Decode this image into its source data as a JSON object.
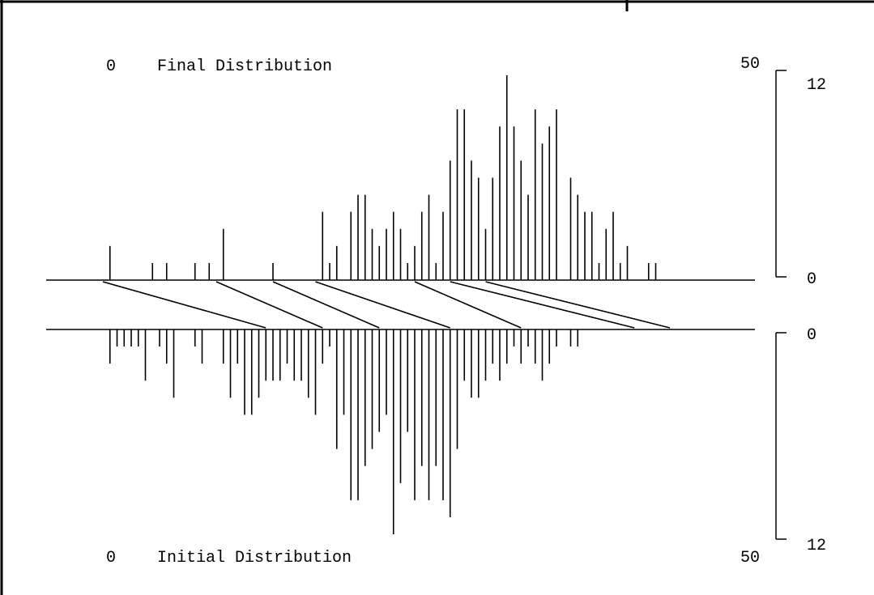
{
  "chart_data": {
    "type": "bar",
    "domain_range": [
      0,
      50
    ],
    "count_range": [
      0,
      12
    ],
    "final": {
      "title": "Final Distribution",
      "x_start_label": "0",
      "x_end_label": "50",
      "scale_max_label": "12",
      "scale_min_label": "0",
      "x": [
        4.5,
        7.5,
        8.5,
        10.5,
        11.5,
        12.5,
        16,
        19.5,
        20,
        20.5,
        21.5,
        22,
        22.5,
        23,
        23.5,
        24,
        24.5,
        25,
        25.5,
        26,
        26.5,
        27,
        27.5,
        28,
        28.5,
        29,
        29.5,
        30,
        30.5,
        31,
        31.5,
        32,
        32.5,
        33,
        33.5,
        34,
        34.5,
        35,
        35.5,
        36,
        37,
        37.5,
        38,
        38.5,
        39,
        39.5,
        40,
        40.5,
        41,
        42.5,
        43
      ],
      "values": [
        2,
        1,
        1,
        1,
        1,
        3,
        1,
        4,
        1,
        2,
        4,
        5,
        5,
        3,
        2,
        3,
        4,
        3,
        1,
        2,
        4,
        5,
        1,
        4,
        7,
        10,
        10,
        7,
        6,
        3,
        6,
        9,
        12,
        9,
        7,
        5,
        10,
        8,
        9,
        10,
        6,
        5,
        4,
        4,
        1,
        3,
        4,
        1,
        2,
        1,
        1
      ]
    },
    "initial": {
      "title": "Initial Distribution",
      "x_start_label": "0",
      "x_end_label": "50",
      "scale_max_label": "12",
      "scale_min_label": "0",
      "x": [
        4.5,
        5,
        5.5,
        6,
        6.5,
        7,
        8,
        8.5,
        9,
        10.5,
        11,
        12.5,
        13,
        13.5,
        14,
        14.5,
        15,
        15.5,
        16,
        16.5,
        17,
        17.5,
        18,
        18.5,
        19,
        19.5,
        20,
        20.5,
        21,
        21.5,
        22,
        22.5,
        23,
        23.5,
        24,
        24.5,
        25,
        25.5,
        26,
        26.5,
        27,
        27.5,
        28,
        28.5,
        29,
        29.5,
        30,
        30.5,
        31,
        31.5,
        32,
        32.5,
        33,
        33.5,
        34,
        34.5,
        35,
        35.5,
        36,
        37,
        37.5
      ],
      "values": [
        2,
        1,
        1,
        1,
        1,
        3,
        1,
        2,
        4,
        1,
        2,
        2,
        4,
        2,
        5,
        5,
        4,
        3,
        3,
        3,
        2,
        3,
        3,
        4,
        5,
        2,
        1,
        7,
        5,
        10,
        10,
        8,
        7,
        6,
        5,
        12,
        9,
        6,
        10,
        8,
        10,
        8,
        10,
        11,
        7,
        3,
        4,
        4,
        3,
        2,
        3,
        2,
        1,
        2,
        1,
        2,
        3,
        2,
        1,
        1,
        1
      ]
    },
    "mapping_lines": [
      [
        15.5,
        4.0
      ],
      [
        19.5,
        12.0
      ],
      [
        23.5,
        16.0
      ],
      [
        28.5,
        19.0
      ],
      [
        33.5,
        26.0
      ],
      [
        41.5,
        28.5
      ],
      [
        44.0,
        31.0
      ]
    ]
  }
}
